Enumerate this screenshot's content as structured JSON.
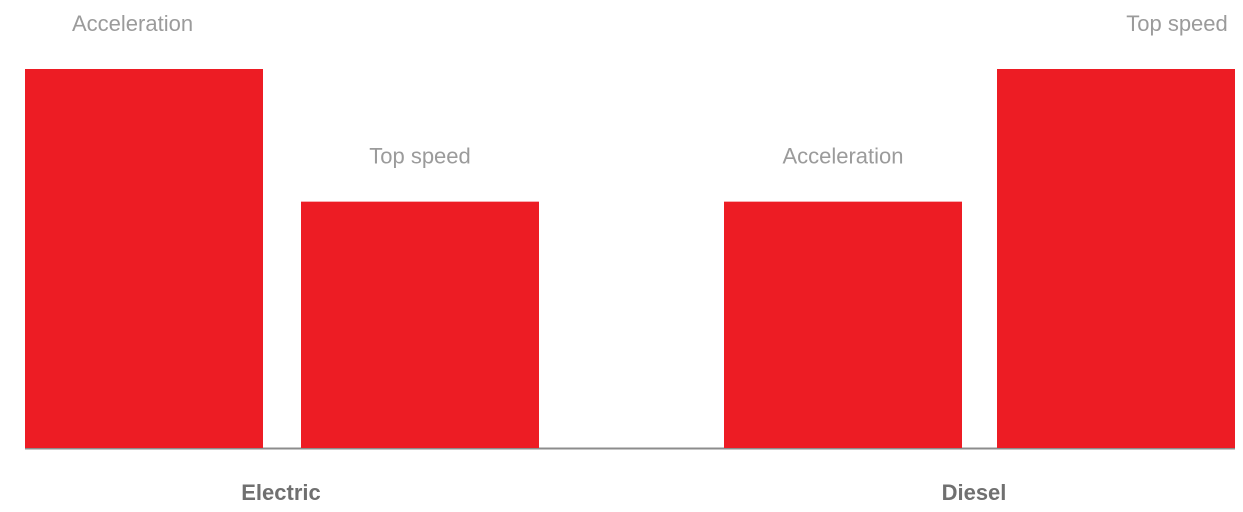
{
  "chart_data": {
    "type": "bar",
    "title": "",
    "xlabel": "",
    "ylabel": "",
    "categories": [
      "Electric",
      "Diesel"
    ],
    "ylim": [
      0,
      100
    ],
    "grid": false,
    "bars": [
      {
        "group": "Electric",
        "label": "Acceleration",
        "value": 100
      },
      {
        "group": "Electric",
        "label": "Top speed",
        "value": 65
      },
      {
        "group": "Diesel",
        "label": "Acceleration",
        "value": 65
      },
      {
        "group": "Diesel",
        "label": "Top speed",
        "value": 100
      }
    ]
  },
  "colors": {
    "bar": "#ed1c24",
    "baseline": "#8c8c8c",
    "bar_label": "#9b9b9b",
    "category_label": "#707070"
  }
}
